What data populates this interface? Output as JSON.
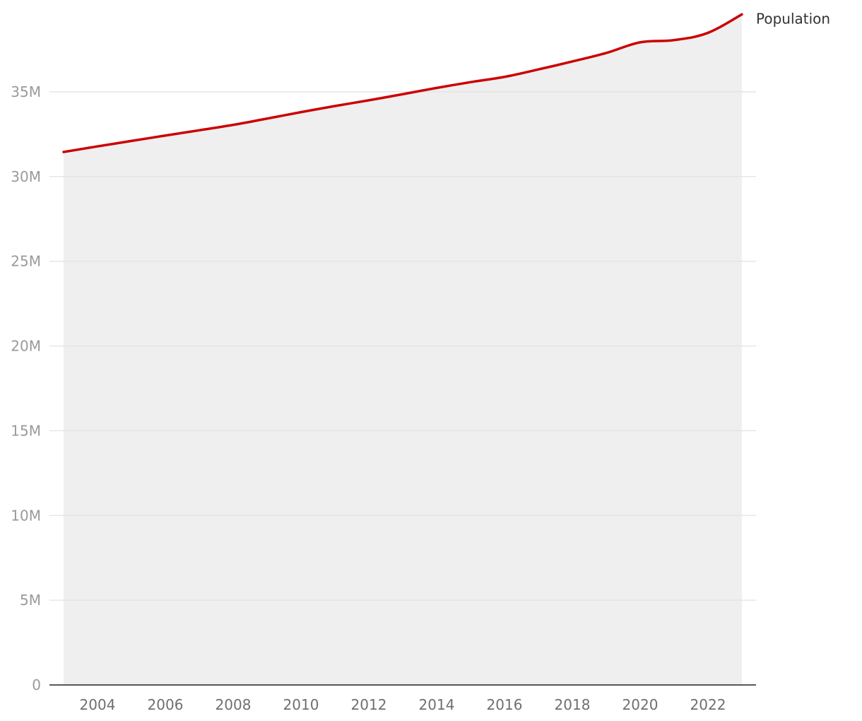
{
  "chart_data": {
    "type": "area",
    "title": "",
    "xlabel": "",
    "ylabel": "",
    "xlim": [
      2003,
      2023
    ],
    "ylim": [
      0,
      40000000
    ],
    "y_ticks": [
      0,
      5000000,
      10000000,
      15000000,
      20000000,
      25000000,
      30000000,
      35000000
    ],
    "y_tick_labels": [
      "0",
      "5M",
      "10M",
      "15M",
      "20M",
      "25M",
      "30M",
      "35M"
    ],
    "x_ticks": [
      2004,
      2006,
      2008,
      2010,
      2012,
      2014,
      2016,
      2018,
      2020,
      2022
    ],
    "x_tick_labels": [
      "2004",
      "2006",
      "2008",
      "2010",
      "2012",
      "2014",
      "2016",
      "2018",
      "2020",
      "2022"
    ],
    "grid": true,
    "series": [
      {
        "name": "Population",
        "label": "Population",
        "color": "#cc0000",
        "fill_color": "#efefef",
        "x": [
          2003,
          2004,
          2005,
          2006,
          2007,
          2008,
          2009,
          2010,
          2011,
          2012,
          2013,
          2014,
          2015,
          2016,
          2017,
          2018,
          2019,
          2020,
          2021,
          2022,
          2023
        ],
        "values": [
          31450000,
          31780000,
          32100000,
          32420000,
          32730000,
          33050000,
          33420000,
          33800000,
          34160000,
          34500000,
          34860000,
          35230000,
          35570000,
          35880000,
          36320000,
          36790000,
          37290000,
          37920000,
          38050000,
          38480000,
          39570000
        ]
      }
    ]
  }
}
